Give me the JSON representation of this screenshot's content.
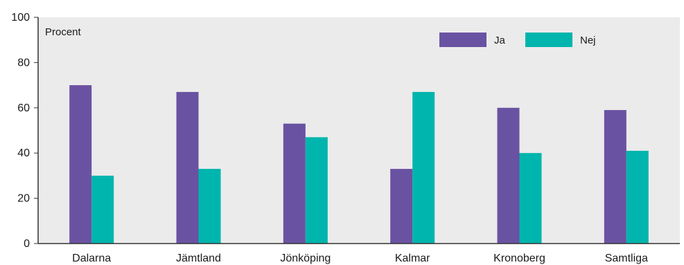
{
  "chart_data": {
    "type": "bar",
    "categories": [
      "Dalarna",
      "Jämtland",
      "Jönköping",
      "Kalmar",
      "Kronoberg",
      "Samtliga"
    ],
    "series": [
      {
        "name": "Ja",
        "color": "#6a52a2",
        "values": [
          70,
          67,
          53,
          33,
          60,
          59
        ]
      },
      {
        "name": "Nej",
        "color": "#00b5ad",
        "values": [
          30,
          33,
          47,
          67,
          40,
          41
        ]
      }
    ],
    "ylabel": "Procent",
    "ylim": [
      0,
      100
    ],
    "yticks": [
      0,
      20,
      40,
      60,
      80,
      100
    ],
    "grid": false,
    "legend_position": "top-right",
    "plot_background": "#ebebeb"
  }
}
